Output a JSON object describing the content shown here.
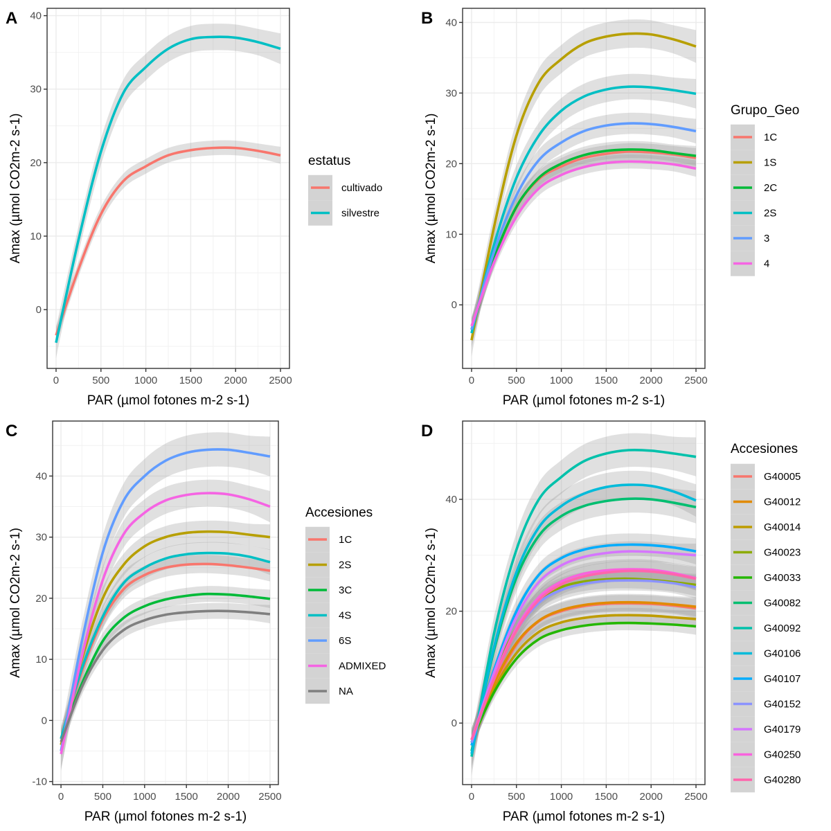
{
  "chart_data": [
    {
      "type": "line",
      "panel": "A",
      "title": "",
      "xlabel": "PAR (µmol fotones m-2 s-1)",
      "ylabel": "Amax (µmol CO2m-2 s-1)",
      "xlim": [
        -100,
        2600
      ],
      "ylim": [
        -8,
        41
      ],
      "xticks": [
        0,
        500,
        1000,
        1500,
        2000,
        2500
      ],
      "yticks": [
        0,
        10,
        20,
        30,
        40
      ],
      "legend": {
        "title": "estatus",
        "placement": "right"
      },
      "series": [
        {
          "name": "cultivado",
          "color": "#F8766D",
          "x": [
            0,
            250,
            500,
            750,
            1000,
            1250,
            1500,
            1750,
            2000,
            2250,
            2500
          ],
          "y": [
            -3.5,
            5.5,
            13.0,
            17.5,
            19.5,
            21.0,
            21.7,
            22.0,
            22.0,
            21.6,
            21.0
          ],
          "ci": 1.0
        },
        {
          "name": "silvestre",
          "color": "#00BFC4",
          "x": [
            0,
            250,
            500,
            750,
            1000,
            1250,
            1500,
            1750,
            2000,
            2250,
            2500
          ],
          "y": [
            -4.5,
            9.5,
            21.5,
            29.5,
            33.0,
            35.5,
            36.8,
            37.1,
            37.0,
            36.4,
            35.5
          ],
          "ci": 1.8
        }
      ]
    },
    {
      "type": "line",
      "panel": "B",
      "title": "",
      "xlabel": "PAR (µmol fotones m-2 s-1)",
      "ylabel": "Amax (µmol CO2m-2 s-1)",
      "xlim": [
        -100,
        2600
      ],
      "ylim": [
        -9,
        42
      ],
      "xticks": [
        0,
        500,
        1000,
        1500,
        2000,
        2500
      ],
      "yticks": [
        0,
        10,
        20,
        30,
        40
      ],
      "legend": {
        "title": "Grupo_Geo",
        "placement": "right"
      },
      "series": [
        {
          "name": "1C",
          "color": "#F8766D",
          "x": [
            0,
            250,
            500,
            750,
            1000,
            1250,
            1500,
            1750,
            2000,
            2250,
            2500
          ],
          "y": [
            -3.5,
            6.5,
            13.8,
            17.8,
            19.6,
            20.8,
            21.4,
            21.7,
            21.6,
            21.3,
            20.8
          ],
          "ci": 1.2
        },
        {
          "name": "1S",
          "color": "#B79F00",
          "x": [
            0,
            250,
            500,
            750,
            1000,
            1250,
            1500,
            1750,
            2000,
            2250,
            2500
          ],
          "y": [
            -5.0,
            11.0,
            24.0,
            31.5,
            34.8,
            37.0,
            38.0,
            38.4,
            38.3,
            37.6,
            36.6
          ],
          "ci": 2.0
        },
        {
          "name": "2C",
          "color": "#00BA38",
          "x": [
            0,
            250,
            500,
            750,
            1000,
            1250,
            1500,
            1750,
            2000,
            2250,
            2500
          ],
          "y": [
            -3.5,
            6.6,
            13.9,
            18.0,
            20.0,
            21.2,
            21.8,
            22.0,
            21.9,
            21.5,
            21.1
          ],
          "ci": 1.2
        },
        {
          "name": "2S",
          "color": "#00BFC4",
          "x": [
            0,
            250,
            500,
            750,
            1000,
            1250,
            1500,
            1750,
            2000,
            2250,
            2500
          ],
          "y": [
            -4.0,
            8.5,
            18.0,
            24.0,
            27.5,
            29.5,
            30.5,
            30.9,
            30.8,
            30.4,
            29.9
          ],
          "ci": 1.8
        },
        {
          "name": "3",
          "color": "#619CFF",
          "x": [
            0,
            250,
            500,
            750,
            1000,
            1250,
            1500,
            1750,
            2000,
            2250,
            2500
          ],
          "y": [
            -3.5,
            7.5,
            15.5,
            20.5,
            23.0,
            24.6,
            25.4,
            25.7,
            25.6,
            25.2,
            24.6
          ],
          "ci": 1.5
        },
        {
          "name": "4",
          "color": "#F564E3",
          "x": [
            0,
            250,
            500,
            750,
            1000,
            1250,
            1500,
            1750,
            2000,
            2250,
            2500
          ],
          "y": [
            -3.0,
            6.0,
            12.5,
            16.5,
            18.4,
            19.5,
            20.1,
            20.3,
            20.2,
            19.9,
            19.3
          ],
          "ci": 1.0
        }
      ]
    },
    {
      "type": "line",
      "panel": "C",
      "title": "",
      "xlabel": "PAR (µmol fotones m-2 s-1)",
      "ylabel": "Amax (µmol CO2m-2 s-1)",
      "xlim": [
        -100,
        2600
      ],
      "ylim": [
        -10.5,
        49
      ],
      "xticks": [
        0,
        500,
        1000,
        1500,
        2000,
        2500
      ],
      "yticks": [
        -10,
        0,
        10,
        20,
        30,
        40
      ],
      "legend": {
        "title": "Accesiones",
        "placement": "right"
      },
      "series": [
        {
          "name": "1C",
          "color": "#F8766D",
          "x": [
            0,
            250,
            500,
            750,
            1000,
            1250,
            1500,
            1750,
            2000,
            2250,
            2500
          ],
          "y": [
            -3.0,
            8.0,
            16.5,
            21.5,
            23.8,
            25.0,
            25.5,
            25.6,
            25.4,
            25.0,
            24.5
          ],
          "ci": 1.5
        },
        {
          "name": "2S",
          "color": "#B79F00",
          "x": [
            0,
            250,
            500,
            750,
            1000,
            1250,
            1500,
            1750,
            2000,
            2250,
            2500
          ],
          "y": [
            -4.0,
            10.0,
            20.0,
            25.5,
            28.5,
            30.0,
            30.7,
            30.9,
            30.8,
            30.4,
            30.0
          ],
          "ci": 1.8
        },
        {
          "name": "3C",
          "color": "#00BA38",
          "x": [
            0,
            250,
            500,
            750,
            1000,
            1250,
            1500,
            1750,
            2000,
            2250,
            2500
          ],
          "y": [
            -3.0,
            6.0,
            13.0,
            16.8,
            18.7,
            19.8,
            20.4,
            20.7,
            20.6,
            20.3,
            19.9
          ],
          "ci": 1.3
        },
        {
          "name": "4S",
          "color": "#00BFC4",
          "x": [
            0,
            250,
            500,
            750,
            1000,
            1250,
            1500,
            1750,
            2000,
            2250,
            2500
          ],
          "y": [
            -3.0,
            8.5,
            17.0,
            22.5,
            25.0,
            26.5,
            27.2,
            27.4,
            27.3,
            26.8,
            25.9
          ],
          "ci": 1.8
        },
        {
          "name": "6S",
          "color": "#619CFF",
          "x": [
            0,
            250,
            500,
            750,
            1000,
            1250,
            1500,
            1750,
            2000,
            2250,
            2500
          ],
          "y": [
            -5.0,
            13.0,
            27.5,
            36.0,
            40.0,
            42.5,
            43.8,
            44.3,
            44.3,
            43.8,
            43.2
          ],
          "ci": 2.8
        },
        {
          "name": "ADMIXED",
          "color": "#F564E3",
          "x": [
            0,
            250,
            500,
            750,
            1000,
            1250,
            1500,
            1750,
            2000,
            2250,
            2500
          ],
          "y": [
            -5.5,
            10.5,
            23.0,
            30.5,
            34.0,
            36.0,
            36.9,
            37.2,
            37.0,
            36.2,
            35.0
          ],
          "ci": 2.2
        },
        {
          "name": "NA",
          "color": "#7F7F7F",
          "x": [
            0,
            250,
            500,
            750,
            1000,
            1250,
            1500,
            1750,
            2000,
            2250,
            2500
          ],
          "y": [
            -3.5,
            5.5,
            11.5,
            14.8,
            16.4,
            17.3,
            17.7,
            17.9,
            17.9,
            17.7,
            17.4
          ],
          "ci": 1.3
        }
      ]
    },
    {
      "type": "line",
      "panel": "D",
      "title": "",
      "xlabel": "PAR (µmol fotones m-2 s-1)",
      "ylabel": "Amax (µmol CO2m-2 s-1)",
      "xlim": [
        -100,
        2600
      ],
      "ylim": [
        -11,
        54
      ],
      "xticks": [
        0,
        500,
        1000,
        1500,
        2000,
        2500
      ],
      "yticks": [
        0,
        20,
        40
      ],
      "legend": {
        "title": "Accesiones",
        "placement": "right"
      },
      "series": [
        {
          "name": "G40005",
          "color": "#F8766D",
          "x": [
            0,
            250,
            500,
            750,
            1000,
            1250,
            1500,
            1750,
            2000,
            2250,
            2500
          ],
          "y": [
            -3.0,
            6.5,
            14.0,
            18.2,
            20.0,
            20.9,
            21.3,
            21.4,
            21.3,
            21.0,
            20.5
          ],
          "ci": 1.5
        },
        {
          "name": "G40012",
          "color": "#E18A00",
          "x": [
            0,
            250,
            500,
            750,
            1000,
            1250,
            1500,
            1750,
            2000,
            2250,
            2500
          ],
          "y": [
            -3.5,
            7.0,
            14.3,
            18.3,
            20.2,
            21.1,
            21.5,
            21.6,
            21.5,
            21.2,
            20.8
          ],
          "ci": 1.5
        },
        {
          "name": "G40014",
          "color": "#BE9C00",
          "x": [
            0,
            250,
            500,
            750,
            1000,
            1250,
            1500,
            1750,
            2000,
            2250,
            2500
          ],
          "y": [
            -3.5,
            6.0,
            12.5,
            16.3,
            18.0,
            18.8,
            19.2,
            19.3,
            19.2,
            18.9,
            18.6
          ],
          "ci": 1.3
        },
        {
          "name": "G40023",
          "color": "#8CAB00",
          "x": [
            0,
            250,
            500,
            750,
            1000,
            1250,
            1500,
            1750,
            2000,
            2250,
            2500
          ],
          "y": [
            -4.0,
            8.5,
            17.0,
            22.0,
            24.3,
            25.3,
            25.7,
            25.8,
            25.6,
            25.2,
            24.7
          ],
          "ci": 1.7
        },
        {
          "name": "G40033",
          "color": "#24B700",
          "x": [
            0,
            250,
            500,
            750,
            1000,
            1250,
            1500,
            1750,
            2000,
            2250,
            2500
          ],
          "y": [
            -3.0,
            5.5,
            11.5,
            15.0,
            16.6,
            17.4,
            17.8,
            17.9,
            17.8,
            17.6,
            17.3
          ],
          "ci": 1.3
        },
        {
          "name": "G40082",
          "color": "#00BE70",
          "x": [
            0,
            250,
            500,
            750,
            1000,
            1250,
            1500,
            1750,
            2000,
            2250,
            2500
          ],
          "y": [
            -5.0,
            13.0,
            26.0,
            33.5,
            37.0,
            38.8,
            39.7,
            40.1,
            40.0,
            39.4,
            38.6
          ],
          "ci": 2.5
        },
        {
          "name": "G40092",
          "color": "#00C1AB",
          "x": [
            0,
            250,
            500,
            750,
            1000,
            1250,
            1500,
            1750,
            2000,
            2250,
            2500
          ],
          "y": [
            -6.0,
            16.0,
            31.0,
            40.0,
            44.0,
            46.8,
            48.2,
            48.8,
            48.7,
            48.2,
            47.6
          ],
          "ci": 3.0
        },
        {
          "name": "G40106",
          "color": "#00BBDA",
          "x": [
            0,
            250,
            500,
            750,
            1000,
            1250,
            1500,
            1750,
            2000,
            2250,
            2500
          ],
          "y": [
            -5.5,
            13.5,
            27.0,
            35.0,
            38.8,
            41.0,
            42.2,
            42.6,
            42.4,
            41.4,
            39.8
          ],
          "ci": 2.5
        },
        {
          "name": "G40107",
          "color": "#00ACFC",
          "x": [
            0,
            250,
            500,
            750,
            1000,
            1250,
            1500,
            1750,
            2000,
            2250,
            2500
          ],
          "y": [
            -4.0,
            9.5,
            20.0,
            26.5,
            29.5,
            31.0,
            31.7,
            31.9,
            31.8,
            31.4,
            30.7
          ],
          "ci": 2.0
        },
        {
          "name": "G40152",
          "color": "#8B93FF",
          "x": [
            0,
            250,
            500,
            750,
            1000,
            1250,
            1500,
            1750,
            2000,
            2250,
            2500
          ],
          "y": [
            -3.5,
            8.0,
            16.5,
            21.5,
            23.8,
            24.9,
            25.4,
            25.5,
            25.4,
            25.0,
            24.3
          ],
          "ci": 1.8
        },
        {
          "name": "G40179",
          "color": "#D575FE",
          "x": [
            0,
            250,
            500,
            750,
            1000,
            1250,
            1500,
            1750,
            2000,
            2250,
            2500
          ],
          "y": [
            -3.0,
            9.0,
            19.0,
            25.2,
            28.2,
            29.7,
            30.4,
            30.7,
            30.6,
            30.3,
            30.0
          ],
          "ci": 1.8
        },
        {
          "name": "G40250",
          "color": "#F962DD",
          "x": [
            0,
            250,
            500,
            750,
            1000,
            1250,
            1500,
            1750,
            2000,
            2250,
            2500
          ],
          "y": [
            -3.0,
            8.0,
            17.0,
            22.5,
            25.3,
            26.7,
            27.3,
            27.5,
            27.4,
            26.8,
            25.9
          ],
          "ci": 1.8
        },
        {
          "name": "G40280",
          "color": "#FF65AC",
          "x": [
            0,
            250,
            500,
            750,
            1000,
            1250,
            1500,
            1750,
            2000,
            2250,
            2500
          ],
          "y": [
            -3.0,
            7.8,
            16.5,
            22.0,
            24.8,
            26.2,
            26.9,
            27.2,
            27.1,
            26.6,
            25.8
          ],
          "ci": 1.8
        }
      ]
    }
  ]
}
